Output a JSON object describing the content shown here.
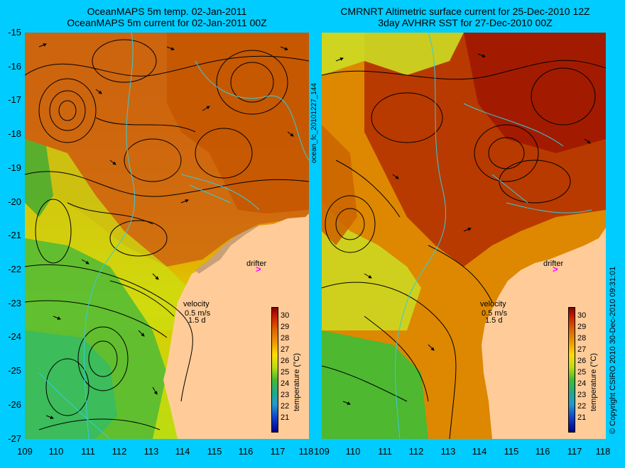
{
  "left": {
    "title_line1": "OceanMAPS 5m temp. 02-Jan-2011",
    "title_line2": "OceanMAPS 5m current for 02-Jan-2011 00Z"
  },
  "right": {
    "title_line1": "CMRNRT Altimetric surface current for 25-Dec-2010 12Z",
    "title_line2": "3day AVHRR SST for 27-Dec-2010 00Z"
  },
  "side_label": "ocean_fc_20101227_144",
  "copyright": "© Copyright CSIRO 2010   30-Dec-2010 09:31:01",
  "legend": {
    "drifter": "drifter",
    "velocity": "velocity",
    "speed": "0.5 m/s",
    "days": "1.5 d",
    "colorbar_label": "temperature (°C)",
    "colorbar_ticks": [
      "30",
      "29",
      "28",
      "27",
      "26",
      "25",
      "24",
      "23",
      "22",
      "21"
    ]
  },
  "axes": {
    "lat_ticks": [
      "-15",
      "-16",
      "-17",
      "-18",
      "-19",
      "-20",
      "-21",
      "-22",
      "-23",
      "-24",
      "-25",
      "-26",
      "-27"
    ],
    "lon_ticks": [
      "109",
      "110",
      "111",
      "112",
      "113",
      "114",
      "115",
      "116",
      "117",
      "118"
    ]
  },
  "colors": {
    "background": "#00ccff",
    "land": "#ffcc99",
    "warm": "#cc5500",
    "hot": "#aa1100",
    "mid": "#ee9900",
    "cool_yellow": "#ccee22",
    "green": "#44bb33",
    "cyan_green": "#33cc99",
    "drifter": "#ff00ff"
  }
}
